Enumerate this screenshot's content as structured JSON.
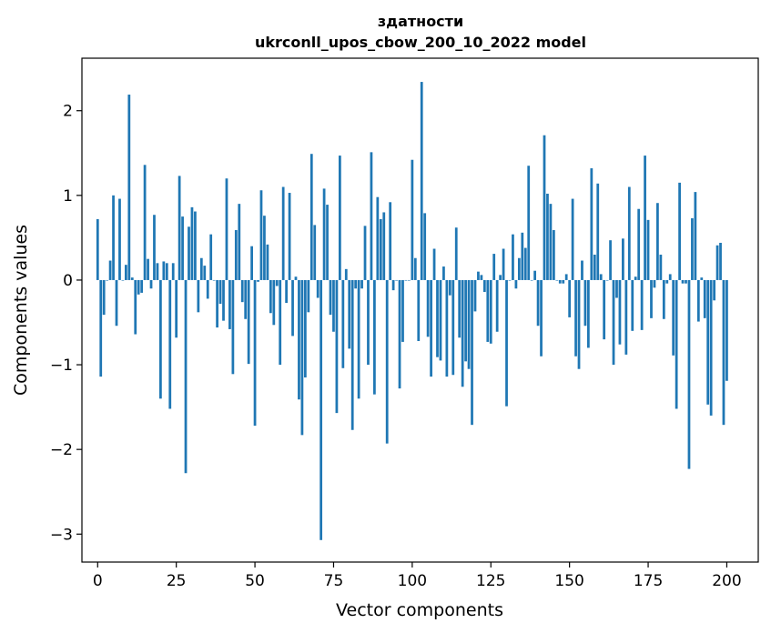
{
  "chart_data": {
    "type": "bar",
    "title_line1": "здатности",
    "title_line2": "ukrconll_upos_cbow_200_10_2022 model",
    "xlabel": "Vector components",
    "ylabel": "Components values",
    "xlim": [
      -5,
      210
    ],
    "ylim": [
      -3.33,
      2.62
    ],
    "xticks": [
      0,
      25,
      50,
      75,
      100,
      125,
      150,
      175,
      200
    ],
    "yticks": [
      -3,
      -2,
      -1,
      0,
      1,
      2
    ],
    "grid": false,
    "bar_color": "#1f77b4",
    "values": [
      0.72,
      -1.14,
      -0.41,
      0.0,
      0.23,
      1.0,
      -0.54,
      0.96,
      0.0,
      0.18,
      2.19,
      0.03,
      -0.64,
      -0.17,
      -0.15,
      1.36,
      0.25,
      -0.1,
      0.77,
      0.2,
      -1.4,
      0.22,
      0.2,
      -1.52,
      0.2,
      -0.68,
      1.23,
      0.75,
      -2.28,
      0.63,
      0.86,
      0.81,
      -0.38,
      0.26,
      0.17,
      -0.22,
      0.54,
      0.0,
      -0.56,
      -0.28,
      -0.48,
      1.2,
      -0.58,
      -1.11,
      0.59,
      0.9,
      -0.26,
      -0.46,
      -0.99,
      0.4,
      -1.72,
      -0.02,
      1.06,
      0.76,
      0.42,
      -0.39,
      -0.53,
      -0.07,
      -1.0,
      1.1,
      -0.27,
      1.03,
      -0.66,
      0.04,
      -1.41,
      -1.83,
      -1.15,
      -0.38,
      1.49,
      0.65,
      -0.21,
      -3.07,
      1.08,
      0.89,
      -0.41,
      -0.61,
      -1.57,
      1.47,
      -1.04,
      0.13,
      -0.81,
      -1.77,
      -0.1,
      -1.4,
      -0.1,
      0.64,
      -1.0,
      1.51,
      -1.35,
      0.98,
      0.72,
      0.8,
      -1.93,
      0.92,
      -0.12,
      0.0,
      -1.28,
      -0.73,
      0.0,
      0.0,
      1.42,
      0.26,
      -0.72,
      2.34,
      0.79,
      -0.67,
      -1.14,
      0.37,
      -0.91,
      -0.95,
      0.16,
      -1.14,
      -0.18,
      -1.12,
      0.62,
      -0.68,
      -1.26,
      -0.96,
      -1.05,
      -1.71,
      -0.37,
      0.1,
      0.06,
      -0.14,
      -0.73,
      -0.75,
      0.31,
      -0.61,
      0.06,
      0.37,
      -1.49,
      0.0,
      0.54,
      -0.1,
      0.26,
      0.56,
      0.38,
      1.35,
      0.0,
      0.11,
      -0.54,
      -0.9,
      1.71,
      1.02,
      0.9,
      0.59,
      0.0,
      -0.04,
      -0.04,
      0.07,
      -0.44,
      0.96,
      -0.9,
      -1.05,
      0.23,
      -0.54,
      -0.8,
      1.32,
      0.3,
      1.14,
      0.07,
      -0.7,
      0.0,
      0.47,
      -1.0,
      -0.21,
      -0.76,
      0.49,
      -0.88,
      1.1,
      -0.6,
      0.04,
      0.84,
      -0.59,
      1.47,
      0.71,
      -0.45,
      -0.09,
      0.91,
      0.3,
      -0.46,
      -0.04,
      0.07,
      -0.89,
      -1.52,
      1.15,
      -0.04,
      -0.04,
      -2.23,
      0.73,
      1.04,
      -0.49,
      0.03,
      -0.45,
      -1.47,
      -1.6,
      -0.24,
      0.41,
      0.44,
      -1.71,
      -1.19
    ]
  }
}
